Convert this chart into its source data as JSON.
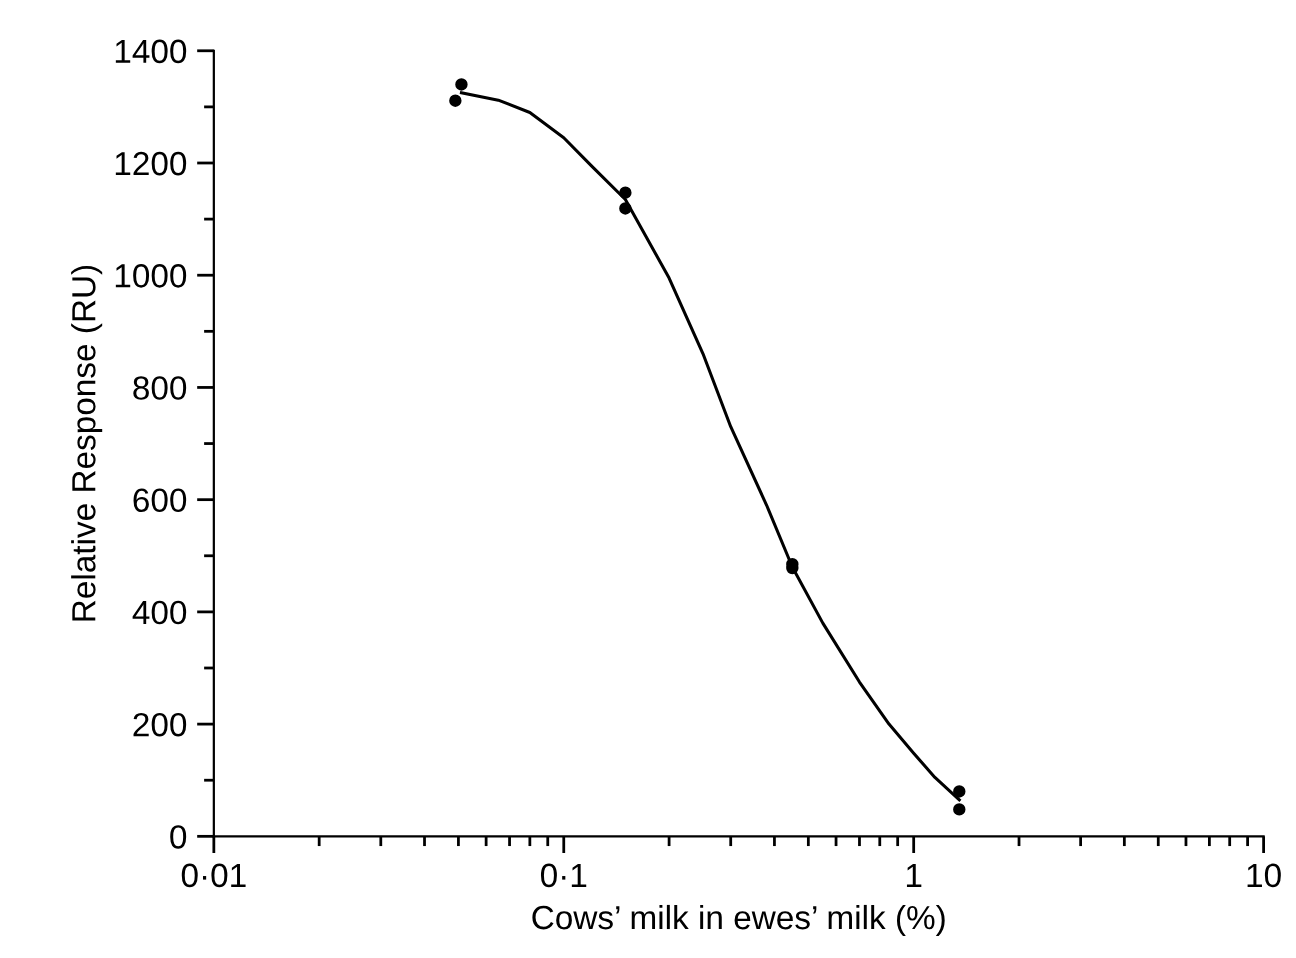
{
  "chart_data": {
    "type": "scatter",
    "xlabel": "Cows’ milk in ewes’ milk (%)",
    "ylabel": "Relative Response (RU)",
    "log": "x",
    "xlim": [
      0.01,
      10
    ],
    "xticks": [
      {
        "value": 0.01,
        "label": "0·01"
      },
      {
        "value": 0.1,
        "label": "0·1"
      },
      1,
      10
    ],
    "ylim": [
      0,
      1400
    ],
    "yticks": [
      0,
      {
        "value": 100,
        "label": null
      },
      200,
      {
        "value": 300,
        "label": null
      },
      400,
      {
        "value": 500,
        "label": null
      },
      600,
      {
        "value": 700,
        "label": null
      },
      800,
      {
        "value": 900,
        "label": null
      },
      1000,
      {
        "value": 1100,
        "label": null
      },
      1200,
      {
        "value": 1300,
        "label": null
      },
      1400
    ],
    "grid": false,
    "legend": false,
    "series": [
      {
        "color": "#000000",
        "marker": "circle",
        "x": [
          0.049,
          0.051,
          0.15,
          0.15,
          0.45,
          0.45,
          1.35,
          1.35
        ],
        "values": [
          1311,
          1340,
          1147,
          1119,
          485,
          478,
          80,
          48
        ]
      },
      {
        "type": "line",
        "color": "#000000",
        "marker": "none",
        "line_style": "solid",
        "x": [
          0.051,
          0.065,
          0.08,
          0.1,
          0.12,
          0.15,
          0.2,
          0.25,
          0.3,
          0.38,
          0.45,
          0.55,
          0.7,
          0.85,
          1.0,
          1.15,
          1.35
        ],
        "values": [
          1325,
          1312,
          1290,
          1245,
          1195,
          1135,
          995,
          860,
          730,
          590,
          480,
          380,
          275,
          200,
          148,
          105,
          65
        ]
      }
    ]
  }
}
